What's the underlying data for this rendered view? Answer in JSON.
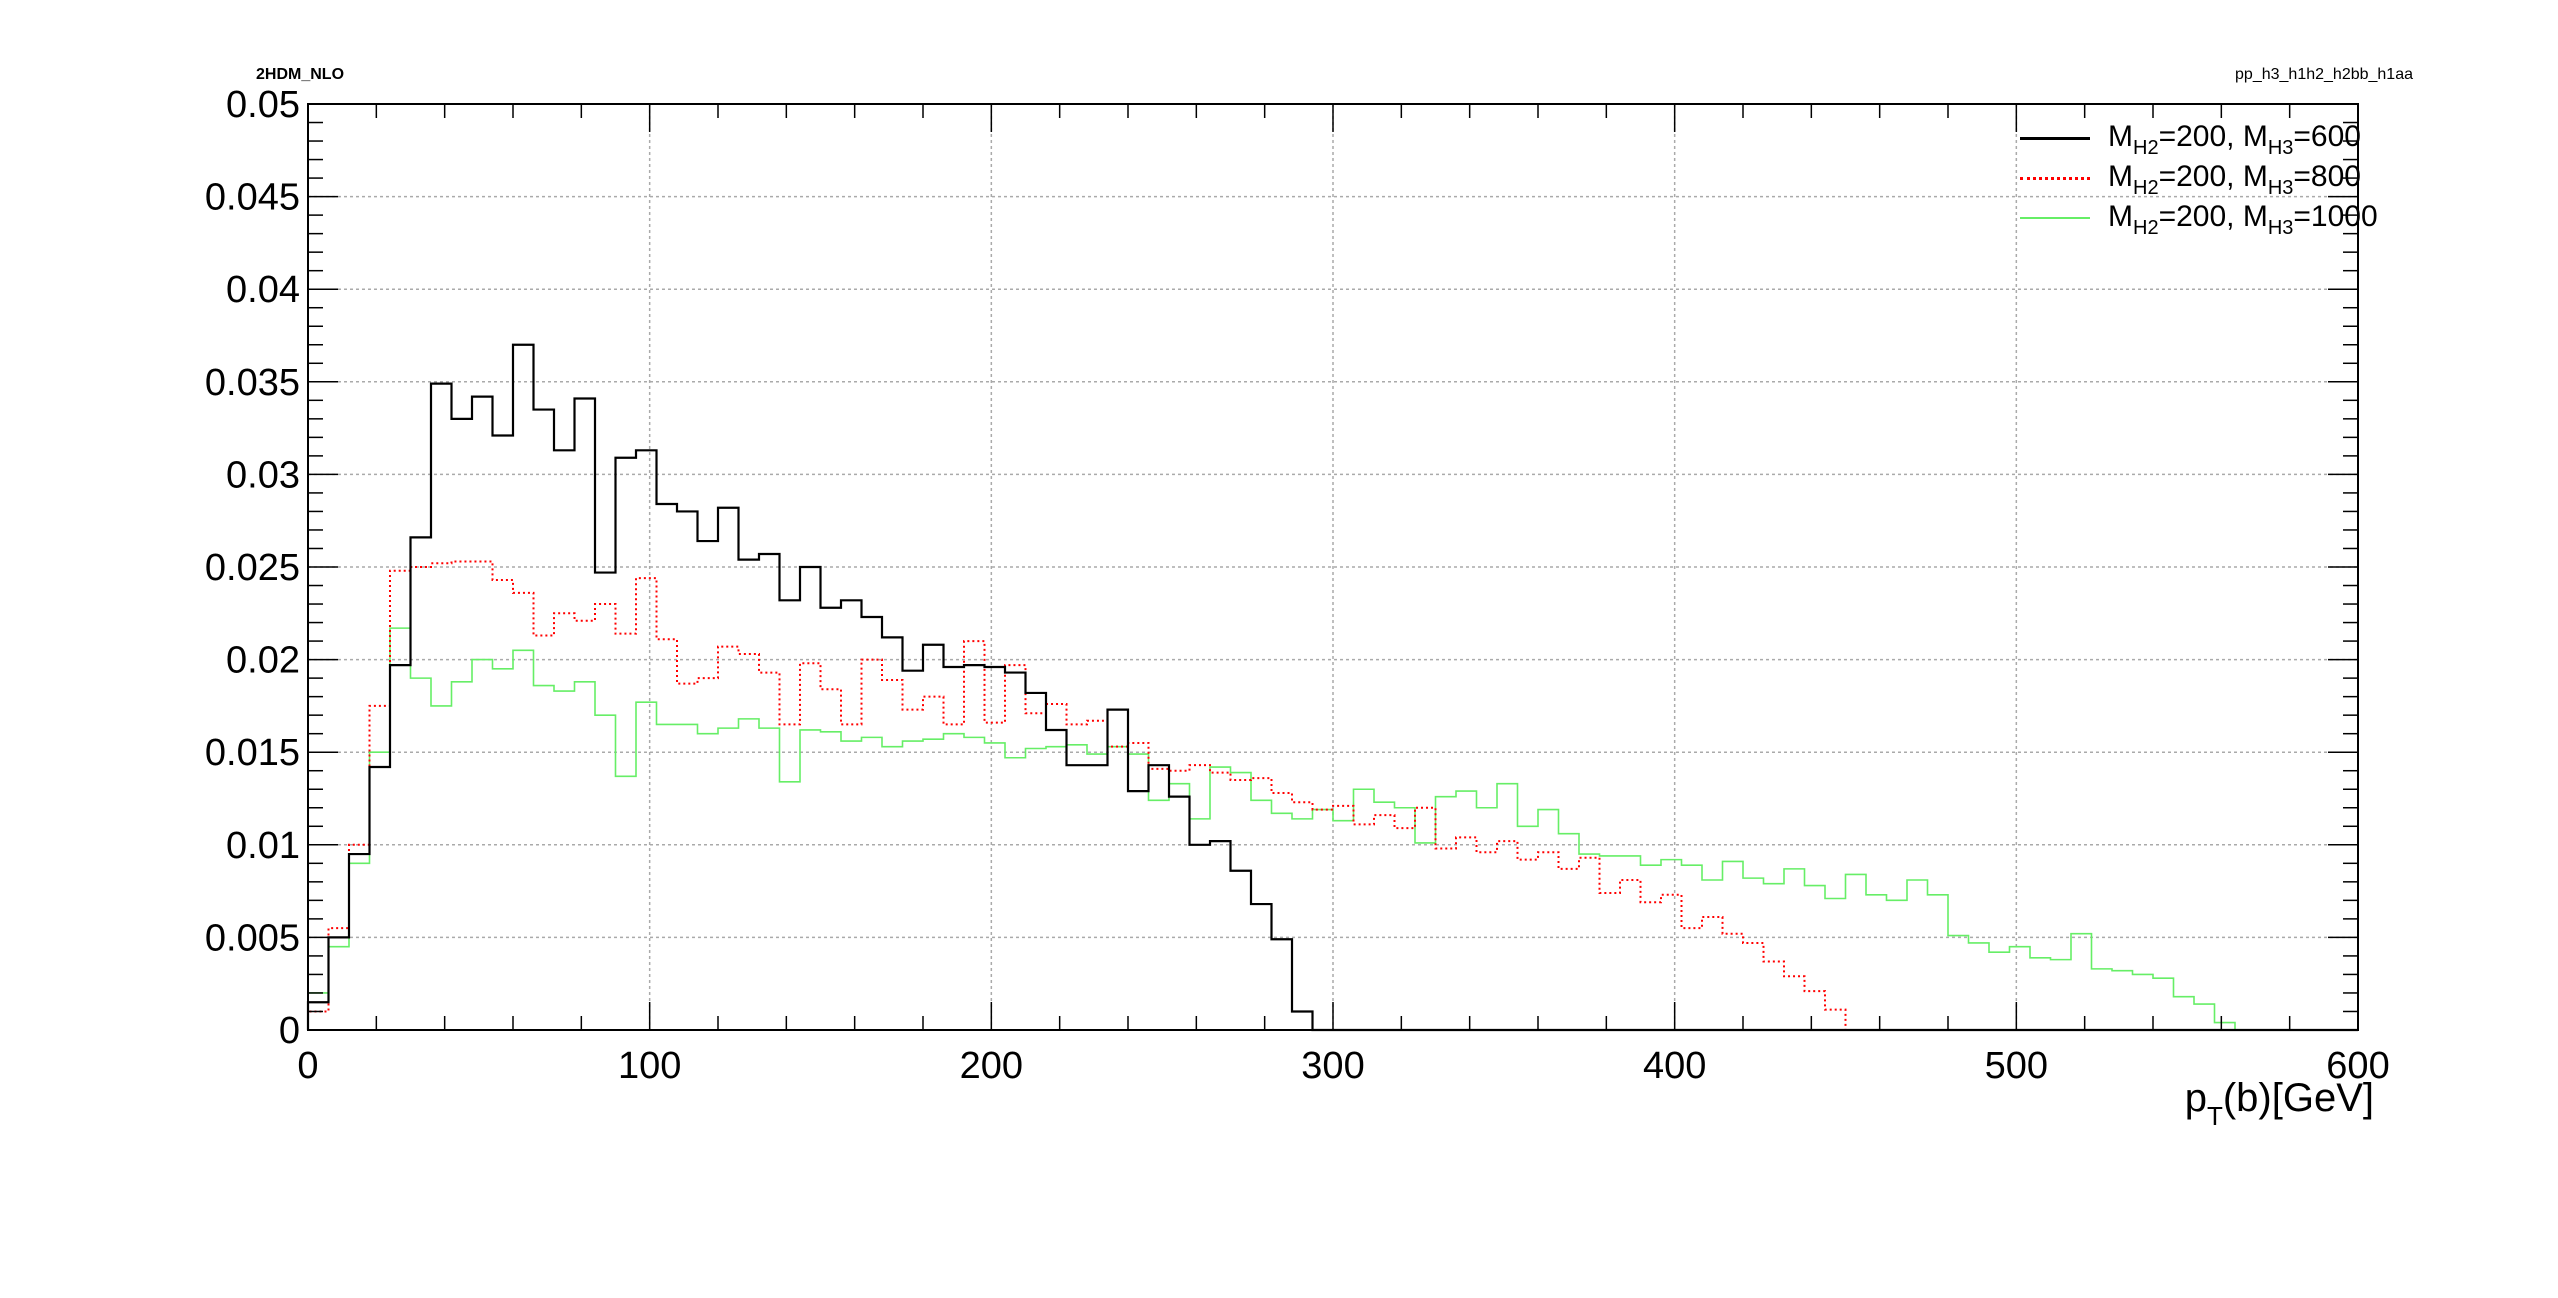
{
  "labels": {
    "top_left": "2HDM_NLO",
    "top_right": "pp_h3_h1h2_h2bb_h1aa",
    "x_title_pre": "p",
    "x_title_sub": "T",
    "x_title_post": "(b)[GeV]"
  },
  "chart_data": {
    "type": "histogram-step",
    "title": "",
    "xlabel": "pT(b)[GeV]",
    "ylabel": "",
    "xlim": [
      0,
      600
    ],
    "ylim": [
      0,
      0.05
    ],
    "bin_width": 6,
    "x_ticks": [
      0,
      100,
      200,
      300,
      400,
      500,
      600
    ],
    "x_tick_labels": [
      "0",
      "100",
      "200",
      "300",
      "400",
      "500",
      "600"
    ],
    "y_ticks": [
      0,
      0.005,
      0.01,
      0.015,
      0.02,
      0.025,
      0.03,
      0.035,
      0.04,
      0.045,
      0.05
    ],
    "y_tick_labels": [
      "0",
      "0.005",
      "0.01",
      "0.015",
      "0.02",
      "0.025",
      "0.03",
      "0.035",
      "0.04",
      "0.045",
      "0.05"
    ],
    "grid": true,
    "legend_position": "top-right",
    "series": [
      {
        "name": "M_H2=200, M_H3=600",
        "legend_parts": {
          "a": "M",
          "a_sub": "H2",
          "b": "=200, M",
          "b_sub": "H3",
          "c": "=600"
        },
        "color": "#000000",
        "style": "solid",
        "values": [
          0.0015,
          0.005,
          0.0095,
          0.0142,
          0.0197,
          0.0266,
          0.0349,
          0.033,
          0.0342,
          0.0321,
          0.037,
          0.0335,
          0.0313,
          0.0341,
          0.0247,
          0.0309,
          0.0313,
          0.0284,
          0.028,
          0.0264,
          0.0282,
          0.0254,
          0.0257,
          0.0232,
          0.025,
          0.0228,
          0.0232,
          0.0223,
          0.0212,
          0.0194,
          0.0208,
          0.0196,
          0.0197,
          0.0196,
          0.0193,
          0.0182,
          0.0162,
          0.0143,
          0.0143,
          0.0173,
          0.0129,
          0.0143,
          0.0126,
          0.01,
          0.0102,
          0.0086,
          0.0068,
          0.0049,
          0.001,
          0.0,
          0.0,
          0.0,
          0.0,
          0.0,
          0.0,
          0.0,
          0.0,
          0.0,
          0.0,
          0.0,
          0.0,
          0.0,
          0.0,
          0.0,
          0.0,
          0.0,
          0.0,
          0.0,
          0.0,
          0.0,
          0.0,
          0.0,
          0.0,
          0.0,
          0.0,
          0.0,
          0.0,
          0.0,
          0.0,
          0.0,
          0.0,
          0.0,
          0.0,
          0.0,
          0.0,
          0.0,
          0.0,
          0.0,
          0.0,
          0.0,
          0.0,
          0.0,
          0.0,
          0.0,
          0.0,
          0.0,
          0.0,
          0.0,
          0.0,
          0.0
        ]
      },
      {
        "name": "M_H2=200, M_H3=800",
        "legend_parts": {
          "a": "M",
          "a_sub": "H2",
          "b": "=200, M",
          "b_sub": "H3",
          "c": "=800"
        },
        "color": "#ff0000",
        "style": "dotted",
        "values": [
          0.001,
          0.0055,
          0.01,
          0.0175,
          0.0248,
          0.025,
          0.0252,
          0.0253,
          0.0253,
          0.0243,
          0.0236,
          0.0213,
          0.0225,
          0.0221,
          0.023,
          0.0214,
          0.0244,
          0.0211,
          0.0187,
          0.019,
          0.0207,
          0.0203,
          0.0193,
          0.0165,
          0.0198,
          0.0184,
          0.0165,
          0.02,
          0.0189,
          0.0173,
          0.018,
          0.0165,
          0.021,
          0.0166,
          0.0197,
          0.0171,
          0.0176,
          0.0165,
          0.0167,
          0.0153,
          0.0155,
          0.0141,
          0.014,
          0.0143,
          0.0139,
          0.0135,
          0.0136,
          0.0128,
          0.0123,
          0.0119,
          0.0121,
          0.0111,
          0.0116,
          0.0109,
          0.012,
          0.0098,
          0.0104,
          0.0096,
          0.0102,
          0.0092,
          0.0096,
          0.0087,
          0.0093,
          0.0074,
          0.0081,
          0.0069,
          0.0073,
          0.0055,
          0.0061,
          0.0052,
          0.0047,
          0.0037,
          0.0029,
          0.0021,
          0.0011,
          0.0,
          0.0,
          0.0,
          0.0,
          0.0,
          0.0,
          0.0,
          0.0,
          0.0,
          0.0,
          0.0,
          0.0,
          0.0,
          0.0,
          0.0,
          0.0,
          0.0,
          0.0,
          0.0,
          0.0,
          0.0,
          0.0,
          0.0,
          0.0,
          0.0
        ]
      },
      {
        "name": "M_H2=200, M_H3=1000",
        "legend_parts": {
          "a": "M",
          "a_sub": "H2",
          "b": "=200, M",
          "b_sub": "H3",
          "c": "=1000"
        },
        "color": "#66ee66",
        "style": "solid",
        "values": [
          0.002,
          0.0045,
          0.009,
          0.015,
          0.0217,
          0.019,
          0.0175,
          0.0188,
          0.02,
          0.0195,
          0.0205,
          0.0186,
          0.0183,
          0.0188,
          0.017,
          0.0137,
          0.0177,
          0.0165,
          0.0165,
          0.016,
          0.0163,
          0.0168,
          0.0163,
          0.0134,
          0.0162,
          0.0161,
          0.0156,
          0.0158,
          0.0153,
          0.0156,
          0.0157,
          0.016,
          0.0158,
          0.0155,
          0.0147,
          0.0152,
          0.0153,
          0.0154,
          0.0149,
          0.0153,
          0.0149,
          0.0124,
          0.0133,
          0.0114,
          0.0142,
          0.0139,
          0.0124,
          0.0117,
          0.0114,
          0.0119,
          0.0113,
          0.013,
          0.0123,
          0.012,
          0.0101,
          0.0126,
          0.0129,
          0.012,
          0.0133,
          0.011,
          0.0119,
          0.0106,
          0.0095,
          0.0094,
          0.0094,
          0.0089,
          0.0092,
          0.0089,
          0.0081,
          0.0091,
          0.0082,
          0.0079,
          0.0087,
          0.0078,
          0.0071,
          0.0084,
          0.0073,
          0.007,
          0.0081,
          0.0073,
          0.0051,
          0.0047,
          0.0042,
          0.0045,
          0.0039,
          0.0038,
          0.0052,
          0.0033,
          0.0032,
          0.003,
          0.0028,
          0.0018,
          0.0014,
          0.0004,
          0.0,
          0.0,
          0.0,
          0.0,
          0.0,
          0.0
        ]
      }
    ]
  }
}
